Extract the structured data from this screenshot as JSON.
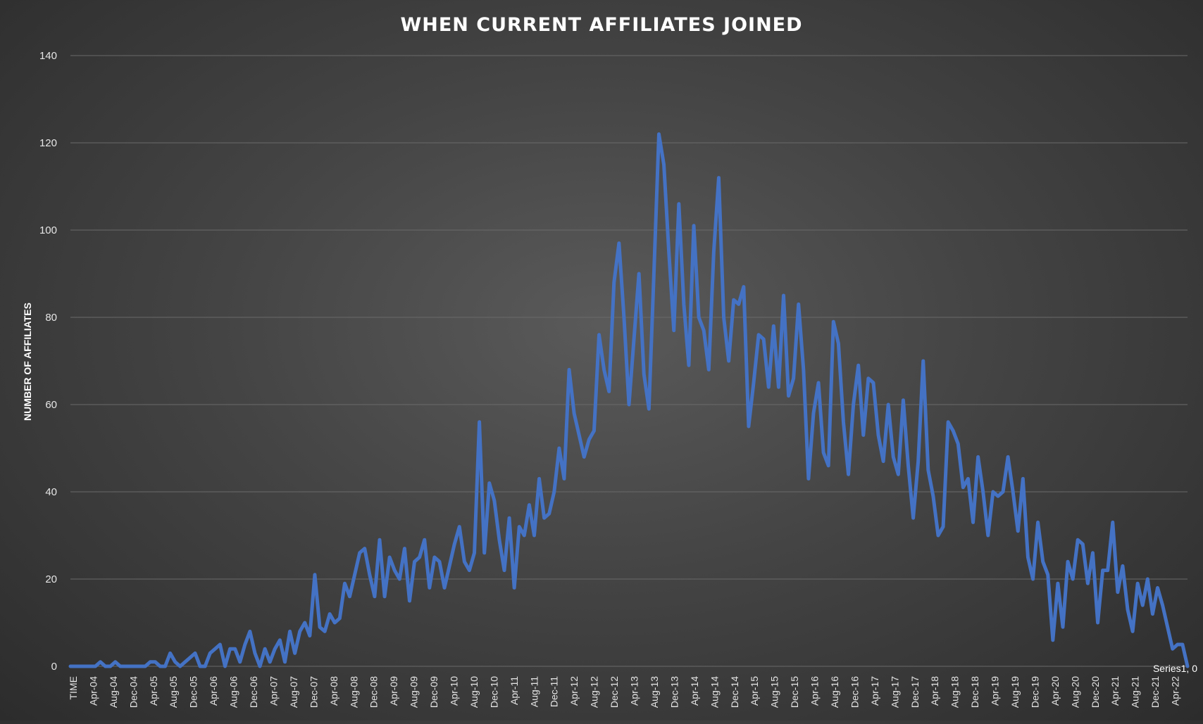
{
  "chart_data": {
    "type": "line",
    "title": "WHEN CURRENT AFFILIATES JOINED",
    "xlabel": "",
    "ylabel": "NUMBER OF AFFILIATES",
    "ylim": [
      0,
      140
    ],
    "yticks": [
      0,
      20,
      40,
      60,
      80,
      100,
      120,
      140
    ],
    "grid": true,
    "x_tick_labels": [
      "TIME",
      "Apr-04",
      "Aug-04",
      "Dec-04",
      "Apr-05",
      "Aug-05",
      "Dec-05",
      "Apr-06",
      "Aug-06",
      "Dec-06",
      "Apr-07",
      "Aug-07",
      "Dec-07",
      "Apr-08",
      "Aug-08",
      "Dec-08",
      "Apr-09",
      "Aug-09",
      "Dec-09",
      "Apr-10",
      "Aug-10",
      "Dec-10",
      "Apr-11",
      "Aug-11",
      "Dec-11",
      "Apr-12",
      "Aug-12",
      "Dec-12",
      "Apr-13",
      "Aug-13",
      "Dec-13",
      "Apr-14",
      "Aug-14",
      "Dec-14",
      "Apr-15",
      "Aug-15",
      "Dec-15",
      "Apr-16",
      "Aug-16",
      "Dec-16",
      "Apr-17",
      "Aug-17",
      "Dec-17",
      "Apr-18",
      "Aug-18",
      "Dec-18",
      "Apr-19",
      "Aug-19",
      "Dec-19",
      "Apr-20",
      "Aug-20",
      "Dec-20",
      "Apr-21",
      "Aug-21",
      "Dec-21",
      "Apr-22"
    ],
    "series": [
      {
        "values": [
          0,
          0,
          0,
          0,
          0,
          0,
          1,
          0,
          0,
          1,
          0,
          0,
          0,
          0,
          0,
          0,
          1,
          1,
          0,
          0,
          3,
          1,
          0,
          1,
          2,
          3,
          0,
          0,
          3,
          4,
          5,
          0,
          4,
          4,
          1,
          5,
          8,
          3,
          0,
          4,
          1,
          4,
          6,
          1,
          8,
          3,
          8,
          10,
          7,
          21,
          9,
          8,
          12,
          10,
          11,
          19,
          16,
          21,
          26,
          27,
          21,
          16,
          29,
          16,
          25,
          22,
          20,
          27,
          15,
          24,
          25,
          29,
          18,
          25,
          24,
          18,
          23,
          28,
          32,
          24,
          22,
          26,
          56,
          26,
          42,
          38,
          29,
          22,
          34,
          18,
          32,
          30,
          37,
          30,
          43,
          34,
          35,
          40,
          50,
          43,
          68,
          58,
          53,
          48,
          52,
          54,
          76,
          68,
          63,
          88,
          97,
          80,
          60,
          75,
          90,
          67,
          59,
          90,
          122,
          115,
          95,
          77,
          106,
          83,
          69,
          101,
          80,
          77,
          68,
          95,
          112,
          80,
          70,
          84,
          83,
          87,
          55,
          65,
          76,
          75,
          64,
          78,
          64,
          85,
          62,
          66,
          83,
          68,
          43,
          58,
          65,
          49,
          46,
          79,
          74,
          56,
          44,
          60,
          69,
          53,
          66,
          65,
          53,
          47,
          60,
          48,
          44,
          61,
          46,
          34,
          47,
          70,
          45,
          39,
          30,
          32,
          56,
          54,
          51,
          41,
          43,
          33,
          48,
          40,
          30,
          40,
          39,
          40,
          48,
          40,
          31,
          43,
          25,
          20,
          33,
          24,
          21,
          6,
          19,
          9,
          24,
          20,
          29,
          28,
          19,
          26,
          10,
          22,
          22,
          33,
          17,
          23,
          13,
          8,
          19,
          14,
          20,
          12,
          18,
          14,
          9,
          4,
          5,
          5,
          0
        ]
      }
    ],
    "last_point_label": "Series1, 0"
  }
}
